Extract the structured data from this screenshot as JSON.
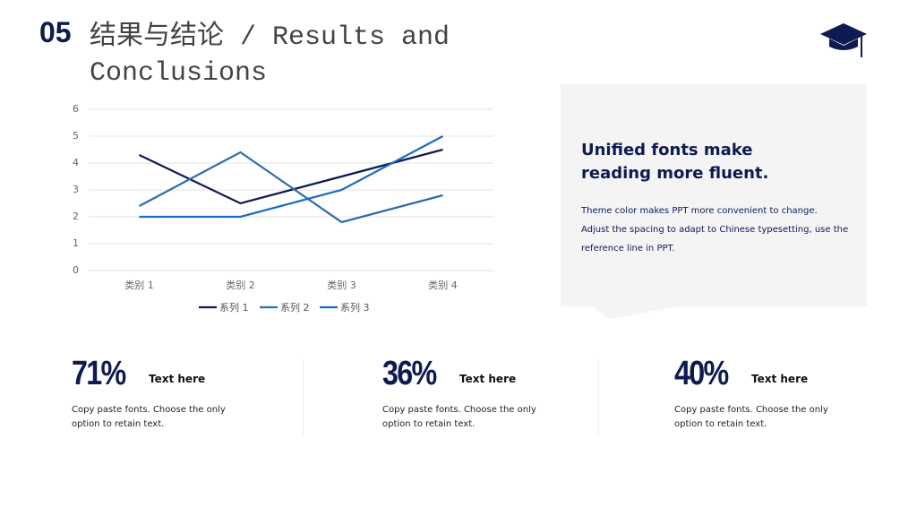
{
  "header": {
    "number": "05",
    "title": "结果与结论 / Results and Conclusions"
  },
  "chart_data": {
    "type": "line",
    "categories": [
      "类别 1",
      "类别 2",
      "类别 3",
      "类别 4"
    ],
    "series": [
      {
        "name": "系列 1",
        "color": "#0e1a52",
        "values": [
          4.3,
          2.5,
          3.5,
          4.5
        ]
      },
      {
        "name": "系列 2",
        "color": "#2f6ea8",
        "values": [
          2.4,
          4.4,
          1.8,
          2.8
        ]
      },
      {
        "name": "系列 3",
        "color": "#1b6cc0",
        "values": [
          2,
          2,
          3,
          5
        ]
      }
    ],
    "ylim": [
      0,
      6
    ],
    "yticks": [
      0,
      1,
      2,
      3,
      4,
      5,
      6
    ],
    "grid": true,
    "legend": "bottom"
  },
  "panel": {
    "heading": "Unified fonts make reading more fluent.",
    "body": [
      "Theme color makes PPT more convenient to change.",
      "Adjust the spacing to adapt to Chinese typesetting, use the reference line in PPT."
    ]
  },
  "stats": [
    {
      "value": "71%",
      "label": "Text here",
      "text": "Copy paste fonts. Choose the only option to retain text."
    },
    {
      "value": "36%",
      "label": "Text here",
      "text": "Copy paste fonts. Choose the only option to retain text."
    },
    {
      "value": "40%",
      "label": "Text here",
      "text": "Copy paste fonts. Choose the only option to retain text."
    }
  ]
}
